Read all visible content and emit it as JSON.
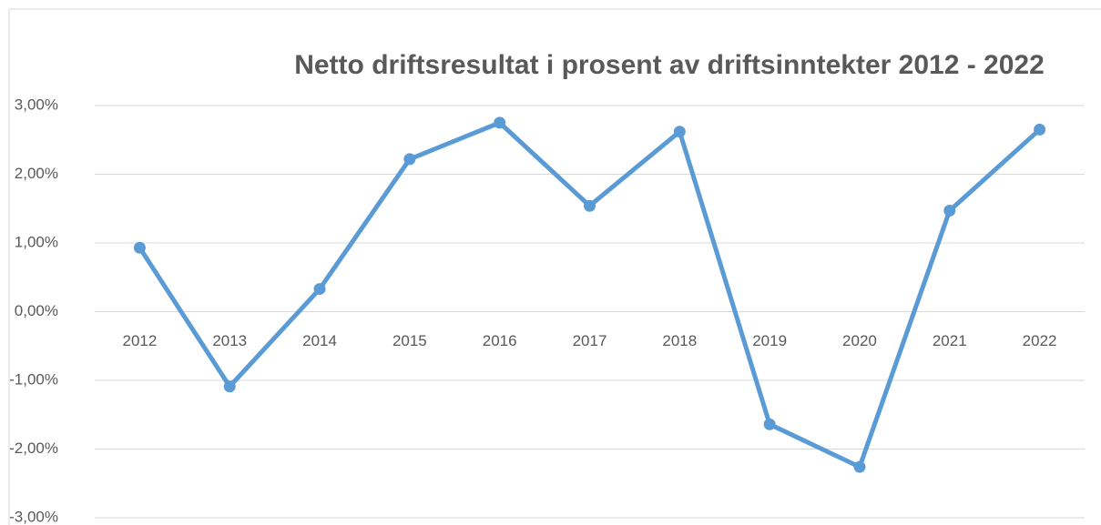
{
  "chart_data": {
    "type": "line",
    "title": "Netto driftsresultat i prosent av driftsinntekter 2012 - 2022",
    "categories": [
      "2012",
      "2013",
      "2014",
      "2015",
      "2016",
      "2017",
      "2018",
      "2019",
      "2020",
      "2021",
      "2022"
    ],
    "series": [
      {
        "name": "Netto driftsresultat",
        "color": "#5b9bd5",
        "values": [
          0.93,
          -1.09,
          0.33,
          2.22,
          2.75,
          1.54,
          2.62,
          -1.64,
          -2.26,
          1.47,
          2.65
        ]
      }
    ],
    "ylim": [
      -3,
      3
    ],
    "yticks": [
      {
        "value": -3,
        "label": "-3,00%"
      },
      {
        "value": -2,
        "label": "-2,00%"
      },
      {
        "value": -1,
        "label": "-1,00%"
      },
      {
        "value": 0,
        "label": "0,00%"
      },
      {
        "value": 1,
        "label": "1,00%"
      },
      {
        "value": 2,
        "label": "2,00%"
      },
      {
        "value": 3,
        "label": "3,00%"
      }
    ],
    "grid": true
  }
}
